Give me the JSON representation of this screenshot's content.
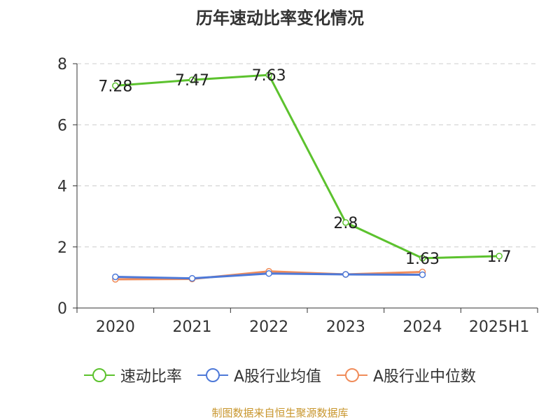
{
  "chart_data": {
    "type": "line",
    "title": "历年速动比率变化情况",
    "categories": [
      "2020",
      "2021",
      "2022",
      "2023",
      "2024",
      "2025H1"
    ],
    "ylim": [
      0,
      8
    ],
    "yticks": [
      "0",
      "2",
      "4",
      "6",
      "8"
    ],
    "grid": true,
    "legend_position": "bottom",
    "series": [
      {
        "name": "速动比率",
        "color": "#5cc22e",
        "values": [
          7.28,
          7.47,
          7.63,
          2.8,
          1.63,
          1.7
        ],
        "labels": [
          "7.28",
          "7.47",
          "7.63",
          "2.8",
          "1.63",
          "1.7"
        ]
      },
      {
        "name": "A股行业均值",
        "color": "#4e79d8",
        "values": [
          1.02,
          0.97,
          1.13,
          1.1,
          1.09,
          null
        ]
      },
      {
        "name": "A股行业中位数",
        "color": "#f08c5a",
        "values": [
          0.94,
          0.95,
          1.2,
          1.1,
          1.18,
          null
        ]
      }
    ]
  },
  "source": "制图数据来自恒生聚源数据库"
}
